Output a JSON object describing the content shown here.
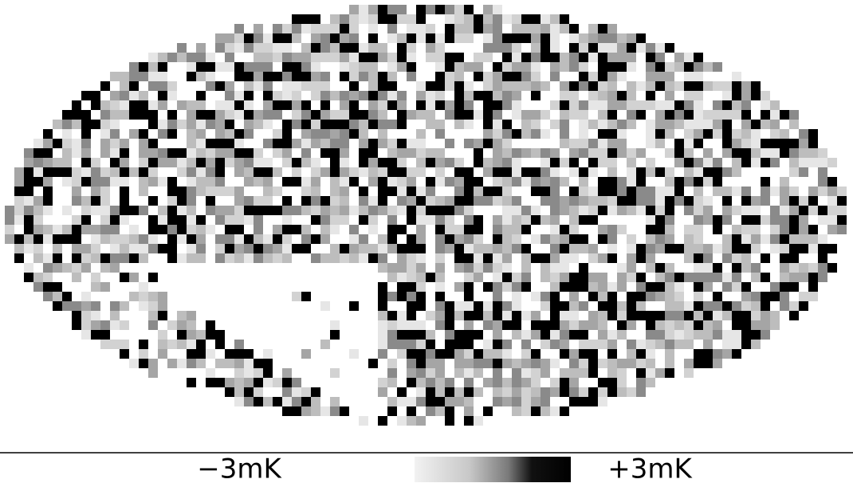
{
  "colorbar": {
    "min_label": "−3mK",
    "max_label": "+3mK"
  }
}
